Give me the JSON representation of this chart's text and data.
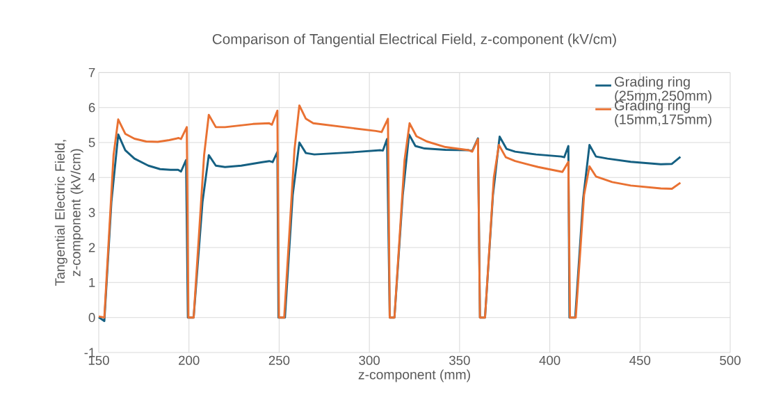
{
  "chart_data": {
    "type": "line",
    "title": "Comparison of Tangential Electrical Field, z-component (kV/cm)",
    "xlabel": "z-component (mm)",
    "ylabel": "Tangential Electric Field, z-component (kV/cm)",
    "xlim": [
      150,
      500
    ],
    "xticks": [
      150,
      200,
      250,
      300,
      350,
      400,
      450,
      500
    ],
    "ylim": [
      -1,
      7
    ],
    "yticks": [
      -1,
      0,
      1,
      2,
      3,
      4,
      5,
      6,
      7
    ],
    "grid": true,
    "legend": "top right",
    "marker": "none",
    "line_style": "solid",
    "series": [
      {
        "name": "Grading ring (25mm,250mm)",
        "color": "#156082",
        "x": [
          150,
          153.1,
          157,
          160.8,
          164.7,
          169.8,
          177.5,
          184,
          189.8,
          194,
          195.6,
          198.4,
          199.4,
          202.6,
          207.5,
          211,
          214.9,
          220,
          229,
          240.6,
          244.5,
          246.4,
          249,
          249.6,
          253.2,
          257.5,
          261.2,
          264.8,
          269.5,
          290,
          306.2,
          307.5,
          309.8,
          311.3,
          313.9,
          318.5,
          322,
          325.5,
          330.6,
          342.2,
          355.1,
          357,
          360.2,
          361.3,
          364.1,
          368.5,
          372.2,
          376,
          380.8,
          392.4,
          406.4,
          408,
          410.3,
          410.9,
          414.1,
          418.5,
          422,
          425.6,
          432,
          444.9,
          461.5,
          467.7,
          472.4
        ],
        "values": [
          0.01,
          -0.1,
          3.3,
          5.23,
          4.78,
          4.54,
          4.34,
          4.24,
          4.22,
          4.22,
          4.17,
          4.5,
          0,
          0,
          3.3,
          4.64,
          4.34,
          4.3,
          4.34,
          4.44,
          4.47,
          4.44,
          4.73,
          0,
          0,
          3.5,
          5.0,
          4.7,
          4.66,
          4.72,
          4.78,
          4.77,
          5.1,
          0,
          0,
          3.5,
          5.23,
          4.9,
          4.83,
          4.79,
          4.78,
          4.76,
          5.12,
          0,
          0,
          3.5,
          5.17,
          4.82,
          4.74,
          4.66,
          4.6,
          4.58,
          4.9,
          0,
          0,
          3.4,
          4.93,
          4.6,
          4.54,
          4.45,
          4.38,
          4.39,
          4.59
        ]
      },
      {
        "name": "Grading ring (15mm,175mm)",
        "color": "#e97132",
        "x": [
          150,
          153.1,
          158.2,
          160.8,
          164.7,
          169.8,
          176.3,
          182.7,
          189.1,
          194.3,
          195.6,
          198.8,
          199.7,
          202.6,
          208.4,
          211,
          214.9,
          220,
          235.5,
          244.5,
          246,
          249,
          249.9,
          252.8,
          258.5,
          261.2,
          264.8,
          268.9,
          303.6,
          306.8,
          310.3,
          311.3,
          313.9,
          319.5,
          322.3,
          326.1,
          331.9,
          342.2,
          355.1,
          357,
          360.2,
          361.3,
          364.1,
          369,
          371.8,
          375.6,
          380.8,
          393.6,
          407,
          410.3,
          411.2,
          414.4,
          419,
          422,
          425.6,
          434.6,
          444.9,
          461.5,
          467.7,
          472.4
        ],
        "values": [
          0.03,
          0,
          4.64,
          5.66,
          5.25,
          5.11,
          5.03,
          5.02,
          5.07,
          5.13,
          5.1,
          5.44,
          0,
          0,
          4.64,
          5.79,
          5.44,
          5.44,
          5.53,
          5.55,
          5.51,
          5.91,
          0,
          0,
          4.8,
          6.06,
          5.68,
          5.55,
          5.33,
          5.3,
          5.68,
          0,
          0,
          4.5,
          5.55,
          5.18,
          5.03,
          4.87,
          4.78,
          4.74,
          5.1,
          0,
          0,
          4.0,
          4.93,
          4.58,
          4.47,
          4.3,
          4.16,
          4.45,
          0,
          0,
          3.5,
          4.32,
          4.03,
          3.87,
          3.77,
          3.69,
          3.68,
          3.85
        ]
      }
    ]
  }
}
